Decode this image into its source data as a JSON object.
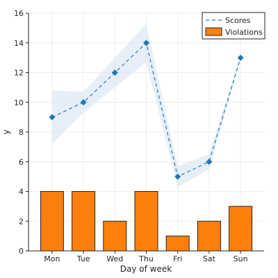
{
  "chart_data": {
    "type": "bar",
    "xlabel": "Day of week",
    "ylabel": "y",
    "ylim": [
      0,
      16
    ],
    "yticks": [
      0,
      2,
      4,
      6,
      8,
      10,
      12,
      14,
      16
    ],
    "categories": [
      "Mon",
      "Tue",
      "Wed",
      "Thu",
      "Fri",
      "Sat",
      "Sun"
    ],
    "grid": true,
    "legend_position": "top-right",
    "series": [
      {
        "name": "Violations",
        "type": "bar",
        "values": [
          4,
          4,
          2,
          4,
          1,
          2,
          3
        ],
        "color": "#ff7f0e"
      },
      {
        "name": "Scores",
        "type": "line",
        "style": "dashed",
        "marker": "diamond",
        "values": [
          9,
          10,
          12,
          14,
          5,
          6,
          13
        ],
        "color": "#1f77b4",
        "band_lower": [
          7.2,
          9.3,
          11.0,
          12.7,
          4.3,
          5.5,
          12.9
        ],
        "band_upper": [
          10.8,
          10.7,
          13.0,
          15.3,
          5.7,
          6.5,
          13.1
        ],
        "band_color": "#dce8f5"
      }
    ]
  }
}
